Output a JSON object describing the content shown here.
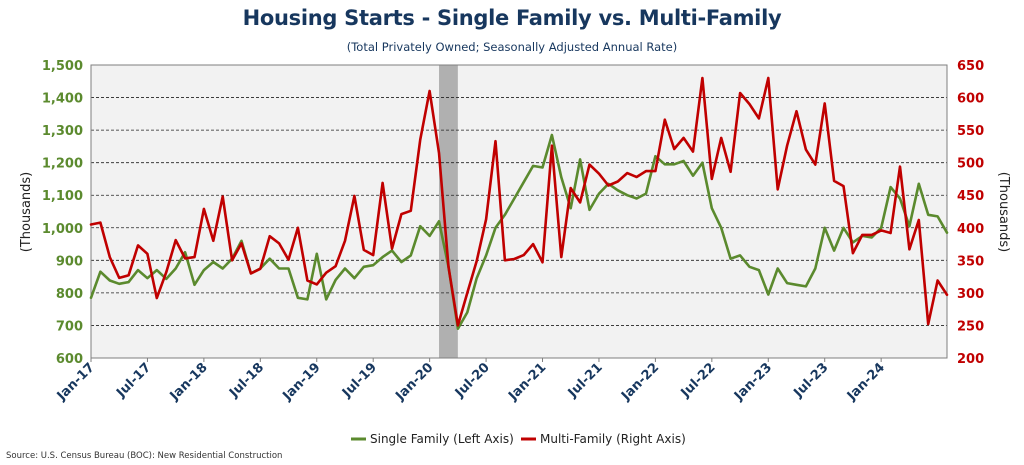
{
  "chart_data": {
    "type": "line",
    "title": "Housing Starts - Single Family vs. Multi-Family",
    "subtitle": "(Total Privately Owned; Seasonally Adjusted Annual Rate)",
    "source": "Source: U.S. Census Bureau (BOC): New Residential Construction",
    "y_left_label": "(Thousands)",
    "y_right_label": "(Thousands)",
    "ylim_left": [
      600,
      1500
    ],
    "ylim_right": [
      200,
      650
    ],
    "y_left_ticks": [
      "600",
      "700",
      "800",
      "900",
      "1,000",
      "1,100",
      "1,200",
      "1,300",
      "1,400",
      "1,500"
    ],
    "y_right_ticks": [
      "200",
      "250",
      "300",
      "350",
      "400",
      "450",
      "500",
      "550",
      "600",
      "650"
    ],
    "x_tick_labels": [
      "Jan-17",
      "Jul-17",
      "Jan-18",
      "Jul-18",
      "Jan-19",
      "Jul-19",
      "Jan-20",
      "Jul-20",
      "Jan-21",
      "Jul-21",
      "Jan-22",
      "Jul-22",
      "Jan-23",
      "Jul-23",
      "Jan-24"
    ],
    "recession_shading": [
      "2020-02",
      "2020-04"
    ],
    "grid": "horizontal dashed",
    "legend_position": "bottom",
    "colors": {
      "left_axis": "#5b8a2e",
      "right_axis": "#c00000",
      "shade": "#b0b0b0",
      "plot_bg": "#f2f2f2"
    },
    "x_start": "2017-01",
    "series": [
      {
        "name": "Single Family (Left Axis)",
        "axis": "left",
        "color": "#5b8a2e",
        "values": [
          785,
          865,
          838,
          828,
          833,
          870,
          845,
          870,
          843,
          875,
          925,
          825,
          870,
          895,
          875,
          905,
          960,
          860,
          875,
          905,
          875,
          875,
          785,
          780,
          920,
          780,
          840,
          875,
          845,
          880,
          885,
          910,
          930,
          895,
          915,
          1005,
          975,
          1020,
          880,
          690,
          740,
          845,
          915,
          1000,
          1040,
          1090,
          1140,
          1190,
          1185,
          1285,
          1155,
          1060,
          1210,
          1055,
          1105,
          1135,
          1115,
          1100,
          1090,
          1105,
          1220,
          1195,
          1195,
          1205,
          1160,
          1200,
          1060,
          1000,
          905,
          915,
          880,
          870,
          795,
          875,
          830,
          825,
          820,
          875,
          1000,
          930,
          1000,
          955,
          975,
          970,
          1000,
          1125,
          1090,
          1005,
          1135,
          1040,
          1035,
          985
        ]
      },
      {
        "name": "Multi-Family (Right Axis)",
        "axis": "right",
        "color": "#c00000",
        "values": [
          405,
          408,
          355,
          323,
          327,
          373,
          360,
          292,
          332,
          381,
          353,
          355,
          429,
          380,
          448,
          350,
          376,
          330,
          337,
          387,
          376,
          351,
          400,
          319,
          313,
          331,
          341,
          380,
          449,
          366,
          358,
          469,
          368,
          421,
          426,
          535,
          610,
          515,
          340,
          250,
          300,
          349,
          413,
          533,
          350,
          352,
          358,
          375,
          347,
          526,
          355,
          461,
          439,
          497,
          483,
          465,
          471,
          484,
          478,
          487,
          487,
          566,
          521,
          538,
          517,
          630,
          475,
          538,
          486,
          607,
          590,
          568,
          630,
          459,
          526,
          579,
          520,
          497,
          591,
          472,
          464,
          361,
          389,
          389,
          396,
          392,
          494,
          367,
          412,
          252,
          319,
          297
        ]
      }
    ]
  }
}
